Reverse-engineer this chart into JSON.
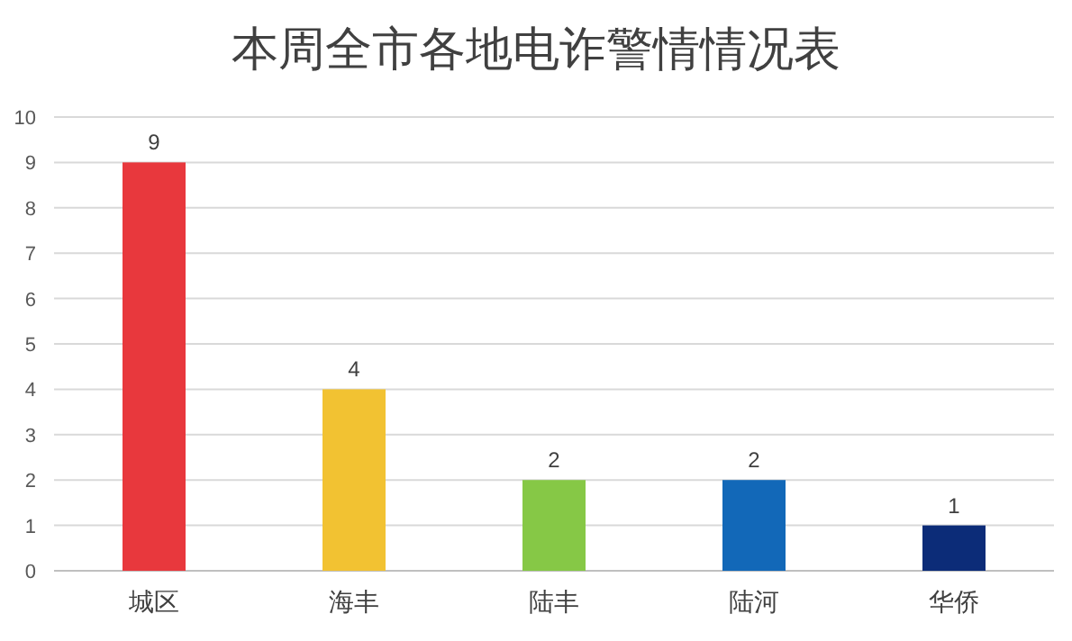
{
  "chart_data": {
    "type": "bar",
    "title": "本周全市各地电诈警情情况表",
    "categories": [
      "城区",
      "海丰",
      "陆丰",
      "陆河",
      "华侨"
    ],
    "values": [
      9,
      4,
      2,
      2,
      1
    ],
    "colors": [
      "#e8383d",
      "#f2c232",
      "#86c846",
      "#1268b8",
      "#0c2c78"
    ],
    "ylim": [
      0,
      10
    ],
    "yticks": [
      0,
      1,
      2,
      3,
      4,
      5,
      6,
      7,
      8,
      9,
      10
    ],
    "grid": "y",
    "data_labels": true
  }
}
